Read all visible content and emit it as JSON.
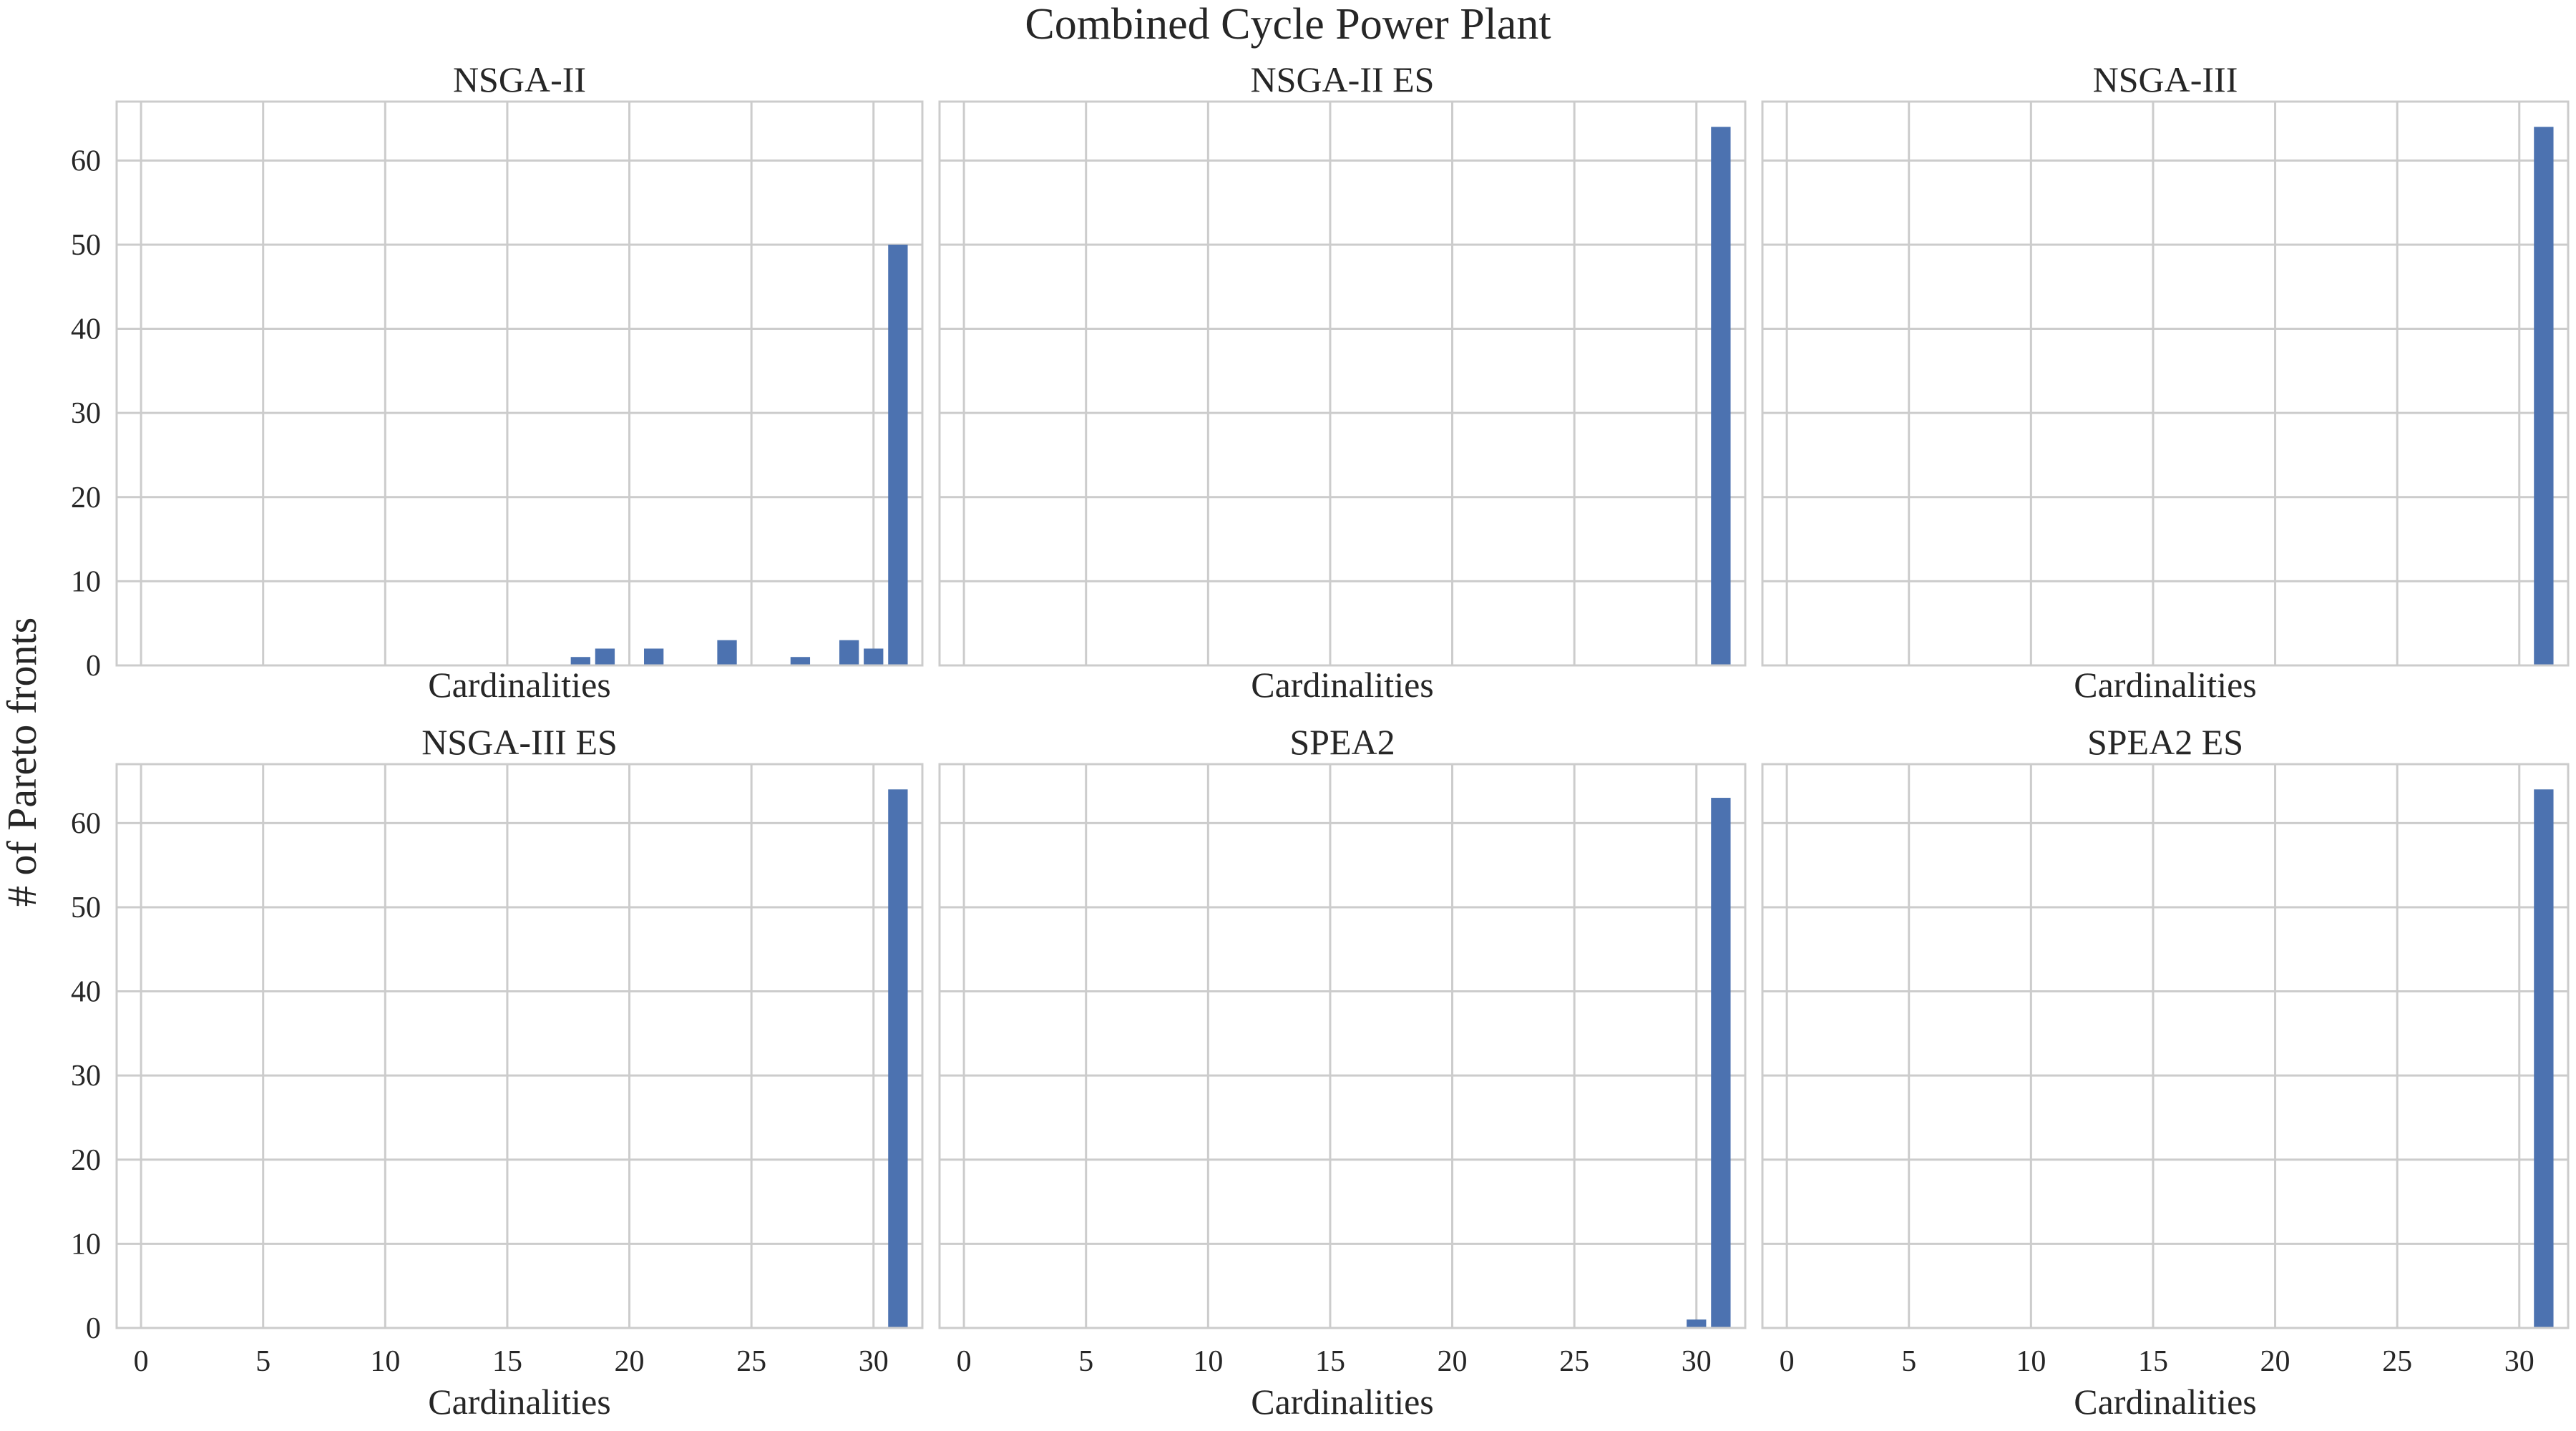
{
  "title": "Combined Cycle Power Plant",
  "ylabel": "# of Pareto fronts",
  "chart_data": [
    {
      "type": "bar",
      "title": "NSGA-II",
      "xlabel": "Cardinalities",
      "x": [
        18,
        19,
        21,
        24,
        27,
        29,
        30,
        31
      ],
      "values": [
        1,
        2,
        2,
        3,
        1,
        3,
        2,
        50
      ],
      "xlim": [
        -1,
        32
      ],
      "ylim": [
        0,
        67
      ],
      "xticks": [
        0,
        5,
        10,
        15,
        20,
        25,
        30
      ],
      "yticks": [
        0,
        10,
        20,
        30,
        40,
        50,
        60
      ],
      "show_xtick_labels": false,
      "show_ytick_labels": true,
      "grid": true,
      "color": "#4c72b0"
    },
    {
      "type": "bar",
      "title": "NSGA-II ES",
      "xlabel": "Cardinalities",
      "x": [
        31
      ],
      "values": [
        64
      ],
      "xlim": [
        -1,
        32
      ],
      "ylim": [
        0,
        67
      ],
      "xticks": [
        0,
        5,
        10,
        15,
        20,
        25,
        30
      ],
      "yticks": [
        0,
        10,
        20,
        30,
        40,
        50,
        60
      ],
      "show_xtick_labels": false,
      "show_ytick_labels": false,
      "grid": true,
      "color": "#4c72b0"
    },
    {
      "type": "bar",
      "title": "NSGA-III",
      "xlabel": "Cardinalities",
      "x": [
        31
      ],
      "values": [
        64
      ],
      "xlim": [
        -1,
        32
      ],
      "ylim": [
        0,
        67
      ],
      "xticks": [
        0,
        5,
        10,
        15,
        20,
        25,
        30
      ],
      "yticks": [
        0,
        10,
        20,
        30,
        40,
        50,
        60
      ],
      "show_xtick_labels": false,
      "show_ytick_labels": false,
      "grid": true,
      "color": "#4c72b0"
    },
    {
      "type": "bar",
      "title": "NSGA-III ES",
      "xlabel": "Cardinalities",
      "x": [
        31
      ],
      "values": [
        64
      ],
      "xlim": [
        -1,
        32
      ],
      "ylim": [
        0,
        67
      ],
      "xticks": [
        0,
        5,
        10,
        15,
        20,
        25,
        30
      ],
      "yticks": [
        0,
        10,
        20,
        30,
        40,
        50,
        60
      ],
      "show_xtick_labels": true,
      "show_ytick_labels": true,
      "grid": true,
      "color": "#4c72b0"
    },
    {
      "type": "bar",
      "title": "SPEA2",
      "xlabel": "Cardinalities",
      "x": [
        30,
        31
      ],
      "values": [
        1,
        63
      ],
      "xlim": [
        -1,
        32
      ],
      "ylim": [
        0,
        67
      ],
      "xticks": [
        0,
        5,
        10,
        15,
        20,
        25,
        30
      ],
      "yticks": [
        0,
        10,
        20,
        30,
        40,
        50,
        60
      ],
      "show_xtick_labels": true,
      "show_ytick_labels": false,
      "grid": true,
      "color": "#4c72b0"
    },
    {
      "type": "bar",
      "title": "SPEA2 ES",
      "xlabel": "Cardinalities",
      "x": [
        31
      ],
      "values": [
        64
      ],
      "xlim": [
        -1,
        32
      ],
      "ylim": [
        0,
        67
      ],
      "xticks": [
        0,
        5,
        10,
        15,
        20,
        25,
        30
      ],
      "yticks": [
        0,
        10,
        20,
        30,
        40,
        50,
        60
      ],
      "show_xtick_labels": true,
      "show_ytick_labels": false,
      "grid": true,
      "color": "#4c72b0"
    }
  ]
}
